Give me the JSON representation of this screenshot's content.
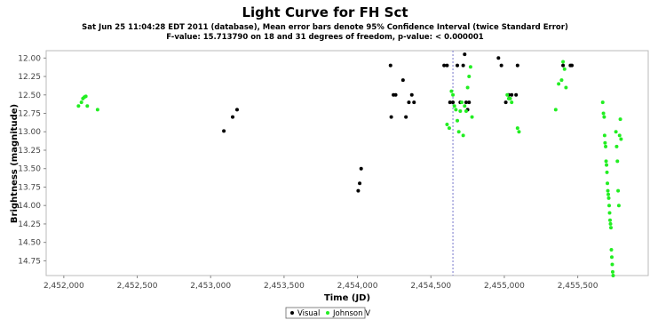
{
  "chart_data": {
    "type": "scatter",
    "title": "Light Curve for FH Sct",
    "subtitle_line1": "Sat Jun 25 11:04:28 EDT 2011 (database), Mean error bars denote 95% Confidence Interval (twice Standard Error)",
    "subtitle_line2": "F-value: 15.713790 on 18 and 31 degrees of freedom, p-value: < 0.000001",
    "xlabel": "Time (JD)",
    "ylabel": "Brightness (magnitude)",
    "xlim": [
      2451880,
      2455980
    ],
    "ylim": [
      11.9,
      14.95
    ],
    "y_inverted": true,
    "x_ticks": [
      2452000,
      2452500,
      2453000,
      2453500,
      2454000,
      2454500,
      2455000,
      2455500
    ],
    "x_tick_labels": [
      "2,452,000",
      "2,452,500",
      "2,453,000",
      "2,453,500",
      "2,454,000",
      "2,454,500",
      "2,455,000",
      "2,455,500"
    ],
    "y_ticks": [
      12.0,
      12.25,
      12.5,
      12.75,
      13.0,
      13.25,
      13.5,
      13.75,
      14.0,
      14.25,
      14.5,
      14.75
    ],
    "y_tick_labels": [
      "12.00",
      "12.25",
      "12.50",
      "12.75",
      "13.00",
      "13.25",
      "13.50",
      "13.75",
      "14.00",
      "14.25",
      "14.50",
      "14.75"
    ],
    "grid": false,
    "marker_line_x": 2454650,
    "legend_position": "bottom-center",
    "series": [
      {
        "name": "Visual",
        "color": "#000000",
        "points": [
          [
            2453090,
            12.99
          ],
          [
            2453150,
            12.8
          ],
          [
            2453180,
            12.7
          ],
          [
            2454005,
            13.8
          ],
          [
            2454015,
            13.7
          ],
          [
            2454025,
            13.5
          ],
          [
            2454225,
            12.1
          ],
          [
            2454230,
            12.8
          ],
          [
            2454245,
            12.5
          ],
          [
            2454260,
            12.5
          ],
          [
            2454310,
            12.3
          ],
          [
            2454330,
            12.8
          ],
          [
            2454350,
            12.6
          ],
          [
            2454370,
            12.5
          ],
          [
            2454385,
            12.6
          ],
          [
            2454590,
            12.1
          ],
          [
            2454610,
            12.1
          ],
          [
            2454630,
            12.6
          ],
          [
            2454650,
            12.6
          ],
          [
            2454680,
            12.1
          ],
          [
            2454700,
            12.6
          ],
          [
            2454720,
            12.1
          ],
          [
            2454730,
            11.95
          ],
          [
            2454740,
            12.6
          ],
          [
            2454750,
            12.7
          ],
          [
            2454760,
            12.6
          ],
          [
            2454960,
            12.0
          ],
          [
            2454980,
            12.1
          ],
          [
            2455010,
            12.6
          ],
          [
            2455030,
            12.5
          ],
          [
            2455050,
            12.5
          ],
          [
            2455080,
            12.5
          ],
          [
            2455090,
            12.1
          ],
          [
            2455400,
            12.1
          ],
          [
            2455450,
            12.1
          ],
          [
            2455460,
            12.1
          ]
        ]
      },
      {
        "name": "Johnson V",
        "color": "#22ee22",
        "points": [
          [
            2452100,
            12.65
          ],
          [
            2452120,
            12.6
          ],
          [
            2452130,
            12.55
          ],
          [
            2452140,
            12.53
          ],
          [
            2452150,
            12.52
          ],
          [
            2452160,
            12.65
          ],
          [
            2452230,
            12.7
          ],
          [
            2454610,
            12.9
          ],
          [
            2454625,
            12.95
          ],
          [
            2454640,
            12.45
          ],
          [
            2454650,
            12.5
          ],
          [
            2454660,
            12.65
          ],
          [
            2454670,
            12.7
          ],
          [
            2454680,
            12.85
          ],
          [
            2454690,
            13.0
          ],
          [
            2454700,
            12.72
          ],
          [
            2454710,
            12.6
          ],
          [
            2454720,
            13.05
          ],
          [
            2454730,
            12.65
          ],
          [
            2454740,
            12.72
          ],
          [
            2454750,
            12.4
          ],
          [
            2454760,
            12.25
          ],
          [
            2454770,
            12.12
          ],
          [
            2454780,
            12.8
          ],
          [
            2455020,
            12.5
          ],
          [
            2455030,
            12.55
          ],
          [
            2455040,
            12.55
          ],
          [
            2455050,
            12.6
          ],
          [
            2455090,
            12.95
          ],
          [
            2455100,
            13.0
          ],
          [
            2455350,
            12.7
          ],
          [
            2455370,
            12.35
          ],
          [
            2455390,
            12.3
          ],
          [
            2455400,
            12.05
          ],
          [
            2455410,
            12.15
          ],
          [
            2455420,
            12.4
          ],
          [
            2455670,
            12.6
          ],
          [
            2455675,
            12.75
          ],
          [
            2455680,
            12.8
          ],
          [
            2455683,
            13.05
          ],
          [
            2455686,
            13.15
          ],
          [
            2455690,
            13.2
          ],
          [
            2455693,
            13.4
          ],
          [
            2455696,
            13.45
          ],
          [
            2455699,
            13.55
          ],
          [
            2455702,
            13.7
          ],
          [
            2455705,
            13.8
          ],
          [
            2455708,
            13.85
          ],
          [
            2455711,
            13.9
          ],
          [
            2455714,
            14.0
          ],
          [
            2455717,
            14.1
          ],
          [
            2455720,
            14.2
          ],
          [
            2455723,
            14.25
          ],
          [
            2455726,
            14.3
          ],
          [
            2455729,
            14.6
          ],
          [
            2455732,
            14.7
          ],
          [
            2455735,
            14.8
          ],
          [
            2455738,
            14.9
          ],
          [
            2455741,
            14.95
          ],
          [
            2455760,
            13.0
          ],
          [
            2455765,
            13.2
          ],
          [
            2455770,
            13.4
          ],
          [
            2455775,
            13.8
          ],
          [
            2455780,
            14.0
          ],
          [
            2455785,
            13.05
          ],
          [
            2455790,
            12.83
          ],
          [
            2455795,
            13.1
          ]
        ]
      }
    ]
  }
}
